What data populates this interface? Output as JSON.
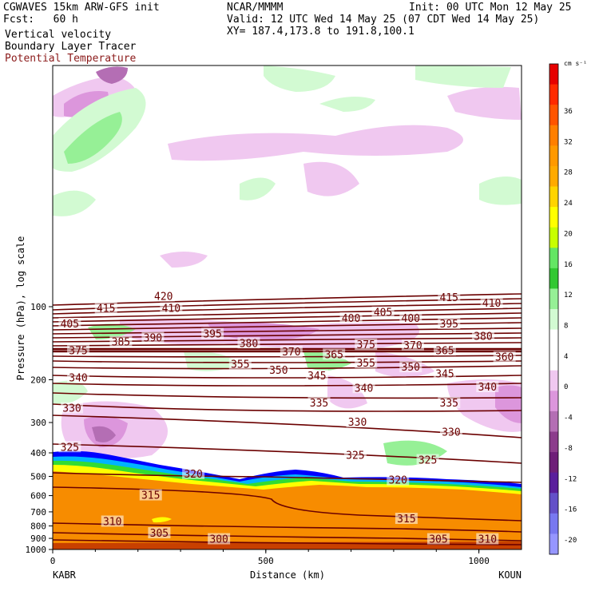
{
  "header": {
    "model": "CGWAVES 15km ARW-GFS init",
    "fcst": "Fcst:   60 h",
    "org": "NCAR/MMMM",
    "init": "Init: 00 UTC Mon 12 May 25",
    "valid": "Valid: 12 UTC Wed 14 May 25 (07 CDT Wed 14 May 25)",
    "xy": "XY= 187.4,173.8 to 191.8,100.1",
    "fields": [
      "Vertical velocity",
      "Boundary Layer Tracer"
    ],
    "potential_temperature_label": "Potential Temperature"
  },
  "colors": {
    "theta_contour": "#6b0000",
    "boundary_layer": "#f78c00"
  },
  "chart_data": {
    "type": "cross-section",
    "xlabel": "Distance (km)",
    "ylabel": "Pressure (hPa), log scale",
    "x_ticks": [
      "0",
      "500",
      "1000"
    ],
    "y_ticks": [
      "100",
      "200",
      "300",
      "400",
      "500",
      "600",
      "700",
      "800",
      "900",
      "1000"
    ],
    "xlim": [
      0,
      1100
    ],
    "y_scale": "log",
    "left_endpoint": "KABR",
    "right_endpoint": "KOUN",
    "colorbar": {
      "units": "cm s⁻¹",
      "tick_labels": [
        "36",
        "32",
        "28",
        "24",
        "20",
        "16",
        "12",
        "8",
        "4",
        "0",
        "-4",
        "-8",
        "-12",
        "-16",
        "-20"
      ],
      "colors": [
        "#e60000",
        "#ff2a00",
        "#ff5500",
        "#ff7f00",
        "#ff9900",
        "#ffaa00",
        "#ffd400",
        "#ffff00",
        "#c8ff00",
        "#64e664",
        "#32c832",
        "#96f096",
        "#d2fad2",
        "#ffffff",
        "#ffffff",
        "#f0c8f0",
        "#dc96dc",
        "#b46eb4",
        "#8c3c8c",
        "#6e1e78",
        "#5a1e9c",
        "#6450c8",
        "#7878f0",
        "#9696ff"
      ]
    },
    "theta_contour_labels": [
      {
        "value": "420",
        "x": 260,
        "p": 91
      },
      {
        "value": "415",
        "x": 125,
        "p": 102
      },
      {
        "value": "410",
        "x": 278,
        "p": 102
      },
      {
        "value": "415",
        "x": 930,
        "p": 92
      },
      {
        "value": "410",
        "x": 1030,
        "p": 97
      },
      {
        "value": "405",
        "x": 40,
        "p": 118
      },
      {
        "value": "400",
        "x": 700,
        "p": 112
      },
      {
        "value": "405",
        "x": 775,
        "p": 106
      },
      {
        "value": "400",
        "x": 840,
        "p": 112
      },
      {
        "value": "395",
        "x": 930,
        "p": 118
      },
      {
        "value": "395",
        "x": 375,
        "p": 130
      },
      {
        "value": "385",
        "x": 160,
        "p": 140
      },
      {
        "value": "390",
        "x": 235,
        "p": 135
      },
      {
        "value": "380",
        "x": 460,
        "p": 142
      },
      {
        "value": "380",
        "x": 1010,
        "p": 133
      },
      {
        "value": "375",
        "x": 60,
        "p": 152
      },
      {
        "value": "375",
        "x": 735,
        "p": 144
      },
      {
        "value": "370",
        "x": 845,
        "p": 145
      },
      {
        "value": "370",
        "x": 560,
        "p": 154
      },
      {
        "value": "365",
        "x": 660,
        "p": 158
      },
      {
        "value": "365",
        "x": 920,
        "p": 152
      },
      {
        "value": "360",
        "x": 1060,
        "p": 162
      },
      {
        "value": "355",
        "x": 440,
        "p": 173
      },
      {
        "value": "355",
        "x": 735,
        "p": 171
      },
      {
        "value": "350",
        "x": 530,
        "p": 183
      },
      {
        "value": "350",
        "x": 840,
        "p": 178
      },
      {
        "value": "345",
        "x": 620,
        "p": 193
      },
      {
        "value": "345",
        "x": 920,
        "p": 190
      },
      {
        "value": "340",
        "x": 60,
        "p": 197
      },
      {
        "value": "340",
        "x": 730,
        "p": 217
      },
      {
        "value": "340",
        "x": 1020,
        "p": 215
      },
      {
        "value": "335",
        "x": 625,
        "p": 250
      },
      {
        "value": "335",
        "x": 930,
        "p": 250
      },
      {
        "value": "330",
        "x": 45,
        "p": 263
      },
      {
        "value": "330",
        "x": 715,
        "p": 300
      },
      {
        "value": "330",
        "x": 935,
        "p": 330
      },
      {
        "value": "325",
        "x": 40,
        "p": 380
      },
      {
        "value": "325",
        "x": 710,
        "p": 410
      },
      {
        "value": "325",
        "x": 880,
        "p": 430
      },
      {
        "value": "320",
        "x": 330,
        "p": 490
      },
      {
        "value": "320",
        "x": 810,
        "p": 520
      },
      {
        "value": "315",
        "x": 230,
        "p": 600
      },
      {
        "value": "315",
        "x": 830,
        "p": 750
      },
      {
        "value": "310",
        "x": 140,
        "p": 770
      },
      {
        "value": "310",
        "x": 1020,
        "p": 910
      },
      {
        "value": "305",
        "x": 250,
        "p": 860
      },
      {
        "value": "305",
        "x": 905,
        "p": 910
      },
      {
        "value": "300",
        "x": 390,
        "p": 910
      }
    ]
  }
}
